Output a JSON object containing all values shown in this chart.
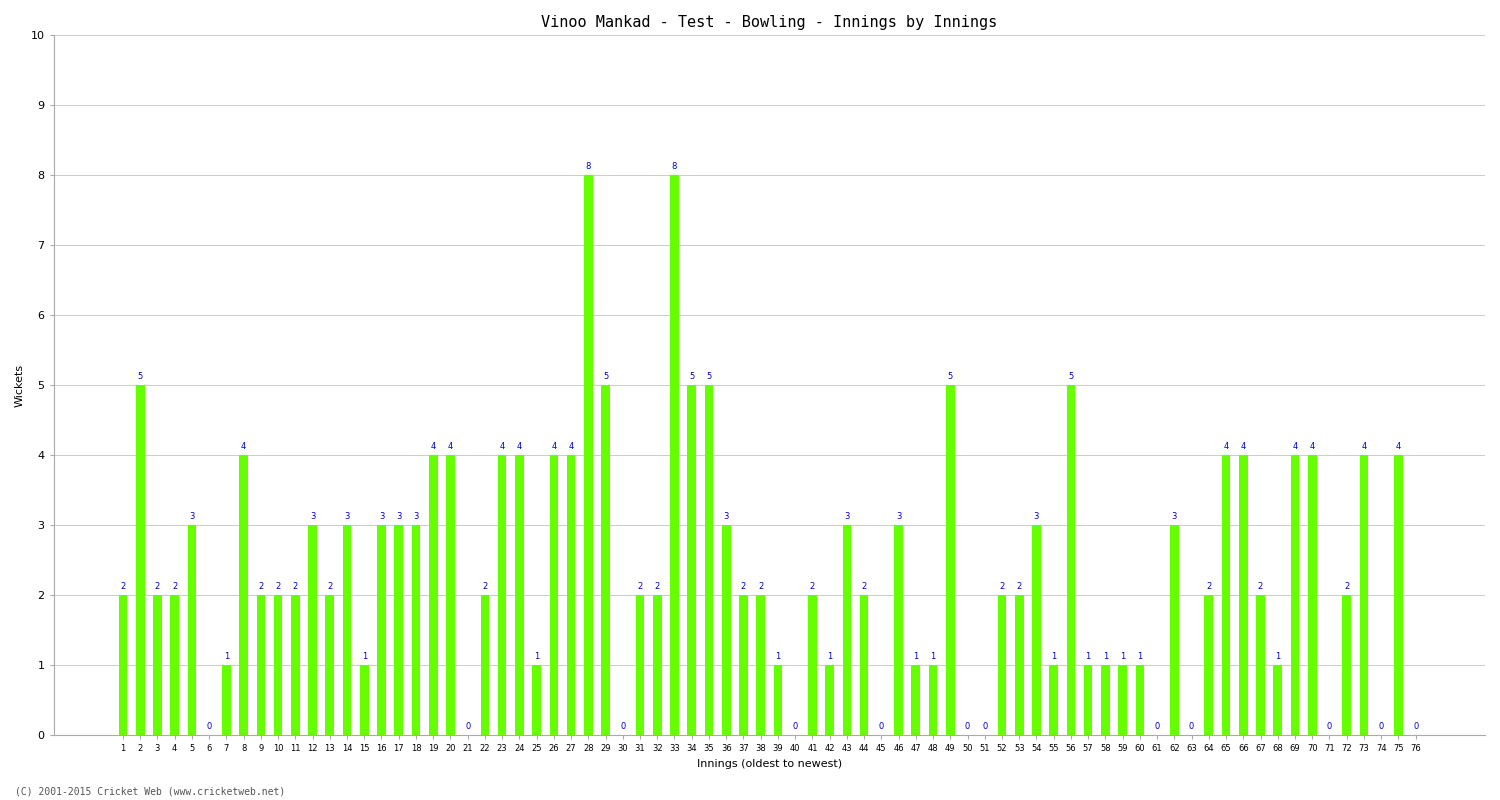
{
  "title": "Vinoo Mankad - Test - Bowling - Innings by Innings",
  "xlabel": "Innings (oldest to newest)",
  "ylabel": "Wickets",
  "ylim": [
    0,
    10
  ],
  "bar_color": "#66ff00",
  "label_color": "#0000cc",
  "background_color": "#ffffff",
  "plot_bg_color": "#f8f8f8",
  "grid_color": "#cccccc",
  "footnote": "(C) 2001-2015 Cricket Web (www.cricketweb.net)",
  "innings": [
    1,
    2,
    3,
    4,
    5,
    6,
    7,
    8,
    9,
    10,
    11,
    12,
    13,
    14,
    15,
    16,
    17,
    18,
    19,
    20,
    21,
    22,
    23,
    24,
    25,
    26,
    27,
    28,
    29,
    30,
    31,
    32,
    33,
    34,
    35,
    36,
    37,
    38,
    39,
    40,
    41,
    42,
    43,
    44,
    45,
    46,
    47,
    48,
    49,
    50,
    51,
    52,
    53,
    54,
    55,
    56,
    57,
    58,
    59,
    60,
    61,
    62,
    63,
    64,
    65,
    66,
    67,
    68,
    69,
    70,
    71,
    72,
    73,
    74,
    75,
    76
  ],
  "wickets": [
    2,
    5,
    2,
    2,
    3,
    0,
    1,
    4,
    2,
    2,
    2,
    3,
    2,
    3,
    1,
    3,
    3,
    3,
    4,
    4,
    0,
    2,
    4,
    4,
    1,
    4,
    4,
    8,
    5,
    0,
    2,
    2,
    8,
    5,
    5,
    3,
    2,
    2,
    1,
    0,
    2,
    1,
    3,
    2,
    0,
    3,
    1,
    1,
    5,
    0,
    0,
    2,
    2,
    3,
    1,
    5,
    1,
    1,
    1,
    1,
    0,
    3,
    0,
    2,
    4,
    4,
    2,
    1,
    4,
    4,
    0,
    2,
    4,
    0,
    4,
    0
  ],
  "bar_width": 0.5,
  "title_fontsize": 11,
  "axis_label_fontsize": 8,
  "tick_fontsize": 6,
  "bar_label_fontsize": 6
}
